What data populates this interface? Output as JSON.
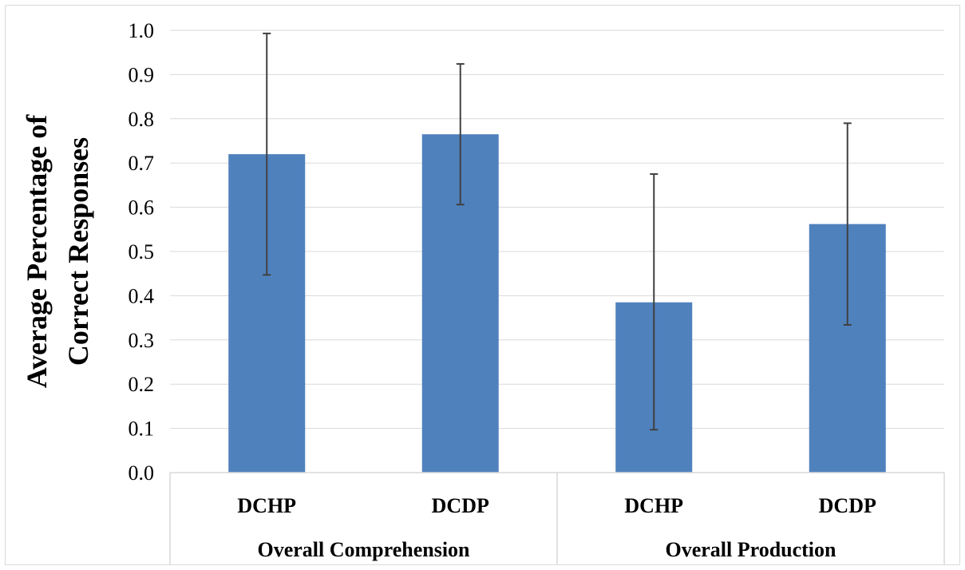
{
  "chart_data": {
    "type": "bar",
    "ylabel_lines": [
      "Average Percentage of",
      "Correct Responses"
    ],
    "ylim": [
      0,
      1.0
    ],
    "y_ticks": [
      "0.0",
      "0.1",
      "0.2",
      "0.3",
      "0.4",
      "0.5",
      "0.6",
      "0.7",
      "0.8",
      "0.9",
      "1.0"
    ],
    "grid": true,
    "legend": "none",
    "bar_color": "#4f81bd",
    "error_bar_color": "#404040",
    "groups": [
      {
        "label": "Overall Comprehension",
        "categories": [
          "DCHP",
          "DCDP"
        ]
      },
      {
        "label": "Overall Production",
        "categories": [
          "DCHP",
          "DCDP"
        ]
      }
    ],
    "categories": [
      "DCHP",
      "DCDP",
      "DCHP",
      "DCDP"
    ],
    "values": [
      0.72,
      0.765,
      0.385,
      0.562
    ],
    "error_low": [
      0.447,
      0.606,
      0.097,
      0.334
    ],
    "error_high": [
      0.993,
      0.924,
      0.675,
      0.79
    ]
  }
}
